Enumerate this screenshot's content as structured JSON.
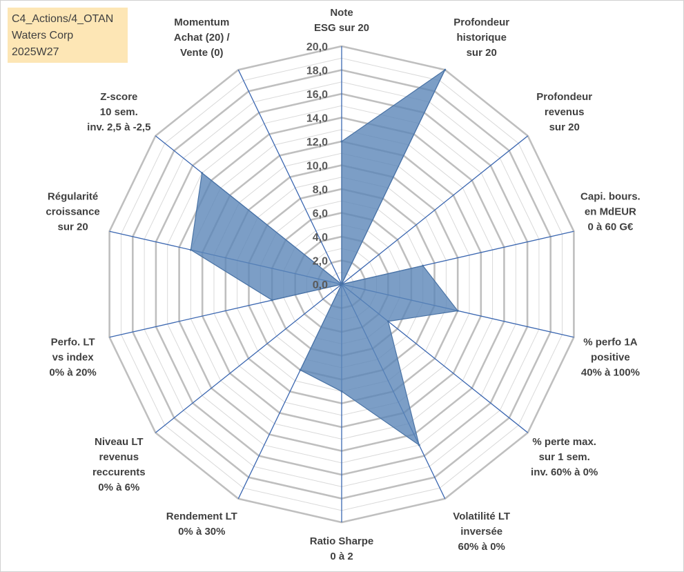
{
  "info": {
    "line1": "C4_Actions/4_OTAN",
    "line2": "Waters Corp",
    "line3": "2025W27"
  },
  "colors": {
    "fill": "#5b86b8",
    "stroke": "#4a73a5",
    "spoke": "#3a66b0",
    "grid_major": "#bfbfbf",
    "grid_minor": "#d9d9d9",
    "info_bg": "#fde6b5"
  },
  "chart_data": {
    "type": "radar",
    "title": "",
    "rmin": 0,
    "rmax": 20,
    "major_step": 2,
    "minor_step": 1,
    "tick_labels": [
      "0,0",
      "2,0",
      "4,0",
      "6,0",
      "8,0",
      "10,0",
      "12,0",
      "14,0",
      "16,0",
      "18,0",
      "20,0"
    ],
    "axes": [
      {
        "label": [
          "Note",
          "ESG sur 20"
        ],
        "value": 12
      },
      {
        "label": [
          "Profondeur",
          "historique",
          "sur 20"
        ],
        "value": 20
      },
      {
        "label": [
          "Profondeur",
          "revenus",
          "sur 20"
        ],
        "value": 0
      },
      {
        "label": [
          "Capi. bours.",
          "en MdEUR",
          "0 à 60 G€"
        ],
        "value": 7
      },
      {
        "label": [
          "% perfo 1A",
          "positive",
          "40% à 100%"
        ],
        "value": 10
      },
      {
        "label": [
          "% perte max.",
          "sur 1 sem.",
          "inv. 60% à 0%"
        ],
        "value": 5
      },
      {
        "label": [
          "Volatilité LT",
          "inversée",
          "60% à 0%"
        ],
        "value": 15
      },
      {
        "label": [
          "Ratio Sharpe",
          "0 à 2"
        ],
        "value": 9
      },
      {
        "label": [
          "Rendement LT",
          "0% à 30%"
        ],
        "value": 8
      },
      {
        "label": [
          "Niveau LT",
          "revenus",
          "reccurents",
          "0% à 6%"
        ],
        "value": 0
      },
      {
        "label": [
          "Perfo. LT",
          "vs index",
          "0% à 20%"
        ],
        "value": 6
      },
      {
        "label": [
          "Régularité",
          "croissance",
          "sur 20"
        ],
        "value": 13
      },
      {
        "label": [
          "Z-score",
          "10 sem.",
          "inv. 2,5 à -2,5"
        ],
        "value": 15
      },
      {
        "label": [
          "Momentum",
          "Achat (20) /",
          "Vente (0)"
        ],
        "value": 0
      }
    ]
  }
}
